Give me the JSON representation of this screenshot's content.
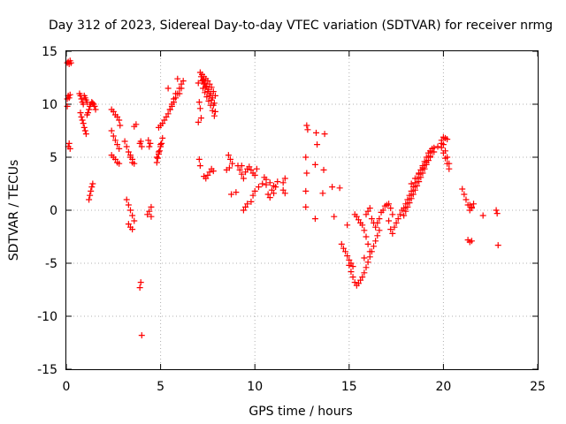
{
  "chart_data": {
    "type": "scatter",
    "title": "Day 312 of 2023, Sidereal Day-to-day VTEC variation (SDTVAR) for receiver nrmg",
    "xlabel": "GPS time / hours",
    "ylabel": "SDTVAR / TECUs",
    "xlim": [
      0,
      25
    ],
    "ylim": [
      -15,
      15
    ],
    "xticks": [
      0,
      5,
      10,
      15,
      20,
      25
    ],
    "yticks": [
      -15,
      -10,
      -5,
      0,
      5,
      10,
      15
    ],
    "grid": true,
    "marker": "plus",
    "color": "#ff0000",
    "series": [
      {
        "name": "SDTVAR",
        "x": [
          0.05,
          0.1,
          0.15,
          0.2,
          0.25,
          0.05,
          0.1,
          0.15,
          0.2,
          0.05,
          0.1,
          0.15,
          0.2,
          0.7,
          0.75,
          0.8,
          0.85,
          0.9,
          0.95,
          1.0,
          1.05,
          1.1,
          0.75,
          0.8,
          0.85,
          0.9,
          0.95,
          1.0,
          1.05,
          1.1,
          1.15,
          1.2,
          1.25,
          1.3,
          1.35,
          1.4,
          1.45,
          1.5,
          1.55,
          1.2,
          1.25,
          1.3,
          1.35,
          1.4,
          2.4,
          2.5,
          2.6,
          2.7,
          2.8,
          2.85,
          2.4,
          2.5,
          2.6,
          2.7,
          2.8,
          2.4,
          2.5,
          2.6,
          2.7,
          2.8,
          3.1,
          3.2,
          3.3,
          3.4,
          3.5,
          3.2,
          3.3,
          3.4,
          3.5,
          3.6,
          3.3,
          3.4,
          3.5,
          3.6,
          3.7,
          3.4,
          3.5,
          3.6,
          3.9,
          3.95,
          4.0,
          3.95,
          3.9,
          4.0,
          4.3,
          4.4,
          4.5,
          4.35,
          4.45,
          4.4,
          4.5,
          4.8,
          4.85,
          4.9,
          4.95,
          5.0,
          5.05,
          4.8,
          4.9,
          5.0,
          5.1,
          4.9,
          5.0,
          5.1,
          5.2,
          5.3,
          5.4,
          5.5,
          5.6,
          5.7,
          5.8,
          5.4,
          5.5,
          5.6,
          5.7,
          5.8,
          5.9,
          6.0,
          6.1,
          6.2,
          5.9,
          6.0,
          6.1,
          7.0,
          7.1,
          7.2,
          7.3,
          7.4,
          7.5,
          7.6,
          7.7,
          7.8,
          7.9,
          7.05,
          7.15,
          7.25,
          7.35,
          7.45,
          7.55,
          7.65,
          7.75,
          7.85,
          7.1,
          7.2,
          7.3,
          7.4,
          7.5,
          7.6,
          7.7,
          7.8,
          7.9,
          7.15,
          7.25,
          7.35,
          7.45,
          7.55,
          7.65,
          7.75,
          7.85,
          7.0,
          7.05,
          7.1,
          7.3,
          7.4,
          7.5,
          7.6,
          7.7,
          7.8,
          8.5,
          8.6,
          8.7,
          8.8,
          8.65,
          8.75,
          9.0,
          9.1,
          9.2,
          9.3,
          9.4,
          9.5,
          9.6,
          9.7,
          9.8,
          9.9,
          10.0,
          10.1,
          9.3,
          9.4,
          9.5,
          9.6,
          9.8,
          9.9,
          10.0,
          10.2,
          10.4,
          10.6,
          10.8,
          11.0,
          11.2,
          10.5,
          10.7,
          10.9,
          11.1,
          11.5,
          11.6,
          10.6,
          10.8,
          11.0,
          11.5,
          11.6,
          12.7,
          12.75,
          12.8,
          12.7,
          12.75,
          12.7,
          13.2,
          13.25,
          13.3,
          13.2,
          13.6,
          13.7,
          13.65,
          14.1,
          14.2,
          14.5,
          14.6,
          14.7,
          14.8,
          14.9,
          15.0,
          15.1,
          15.2,
          15.3,
          15.4,
          15.5,
          15.6,
          14.9,
          15.0,
          15.1,
          15.2,
          15.3,
          15.4,
          15.5,
          15.6,
          15.7,
          15.8,
          15.9,
          16.0,
          16.1,
          16.2,
          16.3,
          16.4,
          16.5,
          16.6,
          15.7,
          15.8,
          15.9,
          16.0,
          16.1,
          15.8,
          15.9,
          16.0,
          16.1,
          16.2,
          16.3,
          16.4,
          16.5,
          16.6,
          16.7,
          16.8,
          16.9,
          17.0,
          17.1,
          17.2,
          17.3,
          17.1,
          17.2,
          17.3,
          17.4,
          17.5,
          17.6,
          17.7,
          17.8,
          17.9,
          18.0,
          18.1,
          18.2,
          18.3,
          18.4,
          18.5,
          18.6,
          18.7,
          18.8,
          18.9,
          19.0,
          19.1,
          19.2,
          19.3,
          19.4,
          17.9,
          18.0,
          18.1,
          18.2,
          18.3,
          18.4,
          18.5,
          18.6,
          18.7,
          18.8,
          18.9,
          19.0,
          19.1,
          19.2,
          19.3,
          19.4,
          19.5,
          18.3,
          18.5,
          18.7,
          18.9,
          19.1,
          19.3,
          19.5,
          19.7,
          19.9,
          19.9,
          20.0,
          20.1,
          20.2,
          20.3,
          19.9,
          20.0,
          20.1,
          20.2,
          20.3,
          20.0,
          20.1,
          20.2,
          21.0,
          21.1,
          21.2,
          21.3,
          21.4,
          21.5,
          21.6,
          21.3,
          21.4,
          21.5,
          21.4,
          21.5,
          22.1,
          22.8,
          22.85,
          22.9
        ],
        "y": [
          13.9,
          14.0,
          13.8,
          14.1,
          13.9,
          10.5,
          10.8,
          10.6,
          10.9,
          9.8,
          6.0,
          6.3,
          5.8,
          11.0,
          10.8,
          10.5,
          10.2,
          10.0,
          10.8,
          10.6,
          10.4,
          10.2,
          9.2,
          8.8,
          8.5,
          8.2,
          7.8,
          7.5,
          7.2,
          9.0,
          9.2,
          9.5,
          9.8,
          10.0,
          10.2,
          10.1,
          10.0,
          9.8,
          9.5,
          1.0,
          1.4,
          1.8,
          2.2,
          2.5,
          9.5,
          9.3,
          9.0,
          8.8,
          8.5,
          8.0,
          7.5,
          7.0,
          6.6,
          6.2,
          5.8,
          5.2,
          5.0,
          4.8,
          4.5,
          4.4,
          6.5,
          6.0,
          5.5,
          5.0,
          4.5,
          1.0,
          0.5,
          0.0,
          -0.5,
          -1.0,
          -1.3,
          -1.6,
          -1.8,
          7.9,
          8.1,
          5.2,
          4.8,
          4.4,
          6.3,
          6.5,
          6.0,
          -6.8,
          -7.3,
          -11.8,
          -0.4,
          -0.1,
          0.3,
          6.6,
          6.3,
          6.0,
          -0.6,
          4.5,
          4.9,
          5.3,
          5.6,
          6.0,
          6.3,
          5.0,
          5.5,
          6.2,
          6.8,
          7.8,
          8.0,
          8.2,
          8.5,
          8.8,
          9.1,
          9.5,
          10.0,
          10.5,
          11.0,
          11.5,
          9.5,
          9.8,
          10.2,
          10.6,
          11.0,
          11.5,
          11.9,
          12.2,
          12.4,
          11.0,
          11.5,
          12.0,
          13.0,
          12.8,
          12.6,
          12.4,
          12.2,
          11.9,
          11.6,
          11.2,
          10.8,
          10.2,
          12.6,
          12.3,
          12.0,
          11.7,
          11.4,
          11.0,
          10.6,
          10.1,
          9.6,
          12.2,
          11.9,
          11.6,
          11.2,
          10.8,
          10.4,
          9.9,
          9.3,
          8.7,
          11.5,
          11.1,
          10.7,
          10.3,
          9.9,
          9.4,
          8.9,
          8.3,
          4.8,
          4.2,
          3.2,
          3.0,
          3.3,
          3.6,
          3.9,
          3.7,
          3.8,
          5.2,
          4.8,
          4.4,
          4.0,
          1.5,
          1.7,
          4.2,
          3.8,
          3.4,
          3.0,
          3.6,
          3.9,
          4.1,
          3.8,
          3.5,
          3.3,
          3.9,
          4.2,
          0.0,
          0.3,
          0.6,
          0.8,
          1.4,
          1.8,
          2.2,
          2.5,
          2.9,
          2.6,
          2.3,
          2.7,
          3.1,
          1.5,
          1.9,
          2.2,
          2.6,
          3.0,
          2.4,
          1.2,
          1.6,
          1.9,
          1.6,
          0.3,
          8.0,
          7.6,
          5.0,
          3.5,
          1.8,
          -0.8,
          7.3,
          6.2,
          4.3,
          1.6,
          7.2,
          3.8,
          2.2,
          -0.6,
          2.1,
          -3.2,
          -3.6,
          -3.9,
          -4.3,
          -4.7,
          -5.0,
          -5.3,
          -0.4,
          -0.6,
          -0.9,
          -1.2,
          -1.4,
          -5.2,
          -5.8,
          -6.3,
          -6.8,
          -7.1,
          -6.9,
          -6.6,
          -6.3,
          -5.9,
          -5.4,
          -4.9,
          -4.4,
          -3.9,
          -3.4,
          -2.9,
          -2.4,
          -1.9,
          -1.4,
          -1.9,
          -2.5,
          -3.2,
          -3.9,
          -4.5,
          -0.4,
          -0.1,
          0.2,
          -0.8,
          -1.2,
          -1.6,
          -1.2,
          -0.8,
          -0.2,
          0.0,
          0.4,
          0.5,
          0.6,
          0.2,
          -0.4,
          -1.0,
          -1.8,
          -2.2,
          -1.6,
          -1.2,
          -0.8,
          -0.4,
          0.0,
          0.2,
          0.6,
          1.0,
          1.4,
          1.8,
          2.2,
          2.6,
          3.0,
          3.4,
          3.8,
          4.2,
          4.6,
          5.0,
          5.4,
          5.6,
          5.8,
          -0.5,
          -0.1,
          0.3,
          0.7,
          1.1,
          1.5,
          1.9,
          2.3,
          2.7,
          3.1,
          3.5,
          3.9,
          4.3,
          4.7,
          5.1,
          5.5,
          5.9,
          2.5,
          3.0,
          3.5,
          4.0,
          4.5,
          5.0,
          5.5,
          6.0,
          6.3,
          6.6,
          6.2,
          5.6,
          5.0,
          4.4,
          5.9,
          5.4,
          4.9,
          4.4,
          3.9,
          6.9,
          6.8,
          6.7,
          2.0,
          1.5,
          1.0,
          0.5,
          0.0,
          0.3,
          0.6,
          -2.8,
          -3.0,
          -2.9,
          0.5,
          0.2,
          -0.5,
          0.0,
          -0.3,
          -3.3
        ]
      }
    ]
  }
}
